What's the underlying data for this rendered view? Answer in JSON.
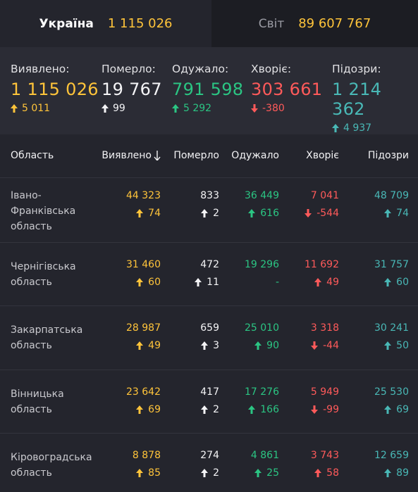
{
  "tabs": [
    {
      "name": "Україна",
      "count": "1 115 026"
    },
    {
      "name": "Світ",
      "count": "89 607 767"
    }
  ],
  "summary": {
    "detected": {
      "label": "Виявлено:",
      "value": "1 115 026",
      "delta": "5 011"
    },
    "died": {
      "label": "Померло:",
      "value": "19 767",
      "delta": "99"
    },
    "recovered": {
      "label": "Одужало:",
      "value": "791 598",
      "delta": "5 292"
    },
    "sick": {
      "label": "Хворіє:",
      "value": "303 661",
      "delta": "-380"
    },
    "suspected": {
      "label": "Підозри:",
      "value": "1 214 362",
      "delta": "4 937"
    }
  },
  "table": {
    "headers": {
      "region": "Область",
      "detected": "Виявлено",
      "died": "Померло",
      "recovered": "Одужало",
      "sick": "Хворіє",
      "suspected": "Підозри"
    },
    "rows": [
      {
        "region": [
          "Івано-",
          "Франківська",
          "область"
        ],
        "detected": "44 323",
        "detected_delta": "74",
        "died": "833",
        "died_delta": "2",
        "recovered": "36 449",
        "recovered_delta": "616",
        "sick": "7 041",
        "sick_delta": "-544",
        "sick_dir": "down",
        "suspected": "48 709",
        "suspected_delta": "74"
      },
      {
        "region": [
          "Чернігівська",
          "область"
        ],
        "detected": "31 460",
        "detected_delta": "60",
        "died": "472",
        "died_delta": "11",
        "recovered": "19 296",
        "recovered_delta": "-",
        "sick": "11 692",
        "sick_delta": "49",
        "sick_dir": "up",
        "suspected": "31 757",
        "suspected_delta": "60"
      },
      {
        "region": [
          "Закарпатська",
          "область"
        ],
        "detected": "28 987",
        "detected_delta": "49",
        "died": "659",
        "died_delta": "3",
        "recovered": "25 010",
        "recovered_delta": "90",
        "sick": "3 318",
        "sick_delta": "-44",
        "sick_dir": "down",
        "suspected": "30 241",
        "suspected_delta": "50"
      },
      {
        "region": [
          "Вінницька",
          "область"
        ],
        "detected": "23 642",
        "detected_delta": "69",
        "died": "417",
        "died_delta": "2",
        "recovered": "17 276",
        "recovered_delta": "166",
        "sick": "5 949",
        "sick_delta": "-99",
        "sick_dir": "down",
        "suspected": "25 530",
        "suspected_delta": "69"
      },
      {
        "region": [
          "Кіровоградська",
          "область"
        ],
        "detected": "8 878",
        "detected_delta": "85",
        "died": "274",
        "died_delta": "2",
        "recovered": "4 861",
        "recovered_delta": "25",
        "sick": "3 743",
        "sick_delta": "58",
        "sick_dir": "up",
        "suspected": "12 659",
        "suspected_delta": "89"
      }
    ]
  },
  "colors": {
    "yellow": "#ffc43a",
    "white": "#f4f4f6",
    "green": "#2bc583",
    "red": "#ff5a5a",
    "teal": "#49b8b6"
  },
  "icons": [
    "arrow-up-icon",
    "arrow-down-icon",
    "sort-down-icon"
  ]
}
